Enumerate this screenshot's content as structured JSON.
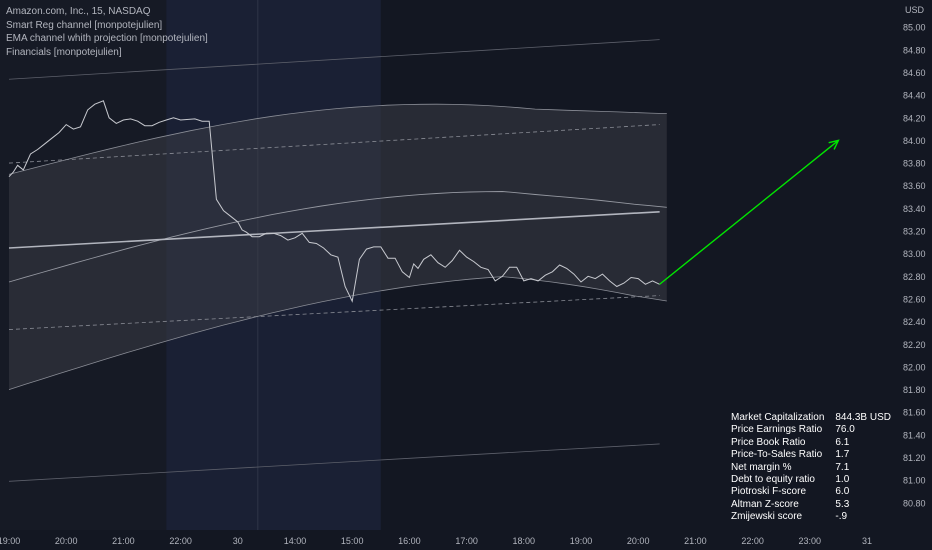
{
  "symbol_title": "Amazon.com, Inc., 15, NASDAQ",
  "indicators": [
    "Smart Reg channel [monpotejulien]",
    "EMA channel whith projection [monpotejulien]",
    "Financials [monpotejulien]"
  ],
  "currency_label": "USD",
  "colors": {
    "background": "#131722",
    "session_shade": "#1a2034",
    "price_line": "#c7c9cf",
    "channel_fill": "#3a3d46",
    "projection_arrow": "#00e600",
    "axis_text": "#b2b5be"
  },
  "chart_data": {
    "type": "line",
    "title": "Amazon.com, Inc., 15, NASDAQ",
    "ylabel": "USD",
    "ylim": [
      80.56,
      85.24
    ],
    "y_ticks": [
      "85.00",
      "84.80",
      "84.60",
      "84.40",
      "84.20",
      "84.00",
      "83.80",
      "83.60",
      "83.40",
      "83.20",
      "83.00",
      "82.80",
      "82.60",
      "82.40",
      "82.20",
      "82.00",
      "81.80",
      "81.60",
      "81.40",
      "81.20",
      "81.00",
      "80.80"
    ],
    "x_ticks": [
      "19:00",
      "20:00",
      "21:00",
      "22:00",
      "30",
      "14:00",
      "15:00",
      "16:00",
      "17:00",
      "18:00",
      "19:00",
      "20:00",
      "21:00",
      "22:00",
      "23:00",
      "31"
    ],
    "x_tick_index": [
      0,
      4,
      8,
      12,
      16,
      20,
      24,
      28,
      32,
      36,
      40,
      44,
      48,
      52,
      56,
      60
    ],
    "grid": false,
    "series": [
      {
        "x": [
          0,
          0.3,
          0.6,
          1,
          1.5,
          2,
          2.5,
          3,
          3.5,
          4,
          4.5,
          5,
          5.5,
          6,
          6.6,
          7,
          7.5,
          8,
          8.5,
          9,
          9.5,
          10,
          10.5,
          11,
          11.5,
          12,
          13,
          13.5,
          14,
          14.5,
          15,
          15.5,
          16,
          16.3,
          16.6,
          17,
          17.5,
          18,
          18.5,
          19,
          19.5,
          20,
          20.5,
          21,
          21.5,
          22,
          22.5,
          23,
          23.5,
          24,
          24.5,
          25,
          25.5,
          26,
          26.5,
          27,
          27.5,
          28,
          28.3,
          28.6,
          29,
          29.5,
          30,
          30.5,
          31,
          31.5,
          32,
          32.5,
          33,
          33.5,
          34,
          34.5,
          35,
          35.5,
          36,
          36.5,
          37,
          37.5,
          38,
          38.5,
          39,
          39.5,
          40,
          40.5,
          41,
          41.5,
          42,
          42.5,
          43,
          43.5,
          44,
          44.5,
          45,
          45.5
        ],
        "y": [
          83.68,
          83.72,
          83.78,
          83.74,
          83.88,
          83.92,
          83.97,
          84.02,
          84.07,
          84.14,
          84.1,
          84.12,
          84.27,
          84.32,
          84.35,
          84.2,
          84.15,
          84.18,
          84.19,
          84.17,
          84.13,
          84.13,
          84.16,
          84.18,
          84.2,
          84.18,
          84.19,
          84.17,
          84.17,
          83.48,
          83.38,
          83.33,
          83.28,
          83.21,
          83.19,
          83.15,
          83.15,
          83.18,
          83.18,
          83.16,
          83.12,
          83.14,
          83.18,
          83.1,
          83.09,
          83.05,
          82.99,
          82.97,
          82.71,
          82.58,
          82.95,
          83.04,
          83.06,
          83.06,
          82.96,
          82.96,
          82.84,
          82.79,
          82.91,
          82.87,
          82.95,
          82.99,
          82.92,
          82.88,
          82.94,
          83.03,
          82.97,
          82.93,
          82.88,
          82.86,
          82.76,
          82.8,
          82.88,
          82.88,
          82.76,
          82.78,
          82.76,
          82.81,
          82.84,
          82.9,
          82.87,
          82.82,
          82.75,
          82.8,
          82.78,
          82.82,
          82.76,
          82.71,
          82.74,
          82.79,
          82.78,
          82.73,
          82.76,
          82.73
        ]
      }
    ],
    "regression_line": {
      "x": [
        0,
        45.5
      ],
      "y": [
        83.05,
        83.37
      ]
    },
    "outer_band": {
      "x": [
        0,
        45.5
      ],
      "upper": [
        84.54,
        84.89
      ],
      "lower": [
        80.99,
        81.32
      ]
    },
    "dashed_channel": {
      "x": [
        0,
        45.5
      ],
      "upper": [
        83.8,
        84.14
      ],
      "lower": [
        82.33,
        82.63
      ]
    },
    "projection_arrow": {
      "from": [
        45.5,
        82.73
      ],
      "to": [
        58,
        84.0
      ]
    },
    "financials": [
      {
        "label": "Market Capitalization",
        "value": "844.3B  USD"
      },
      {
        "label": "Price Earnings Ratio",
        "value": "76.0"
      },
      {
        "label": "Price Book Ratio",
        "value": "6.1"
      },
      {
        "label": "Price-To-Sales Ratio",
        "value": "1.7"
      },
      {
        "label": "Net margin %",
        "value": "7.1"
      },
      {
        "label": "Debt to equity ratio",
        "value": "1.0"
      },
      {
        "label": "Piotroski F-score",
        "value": "6.0"
      },
      {
        "label": "Altman Z-score",
        "value": "5.3"
      },
      {
        "label": "Zmijewski score",
        "value": "-.9"
      }
    ]
  }
}
